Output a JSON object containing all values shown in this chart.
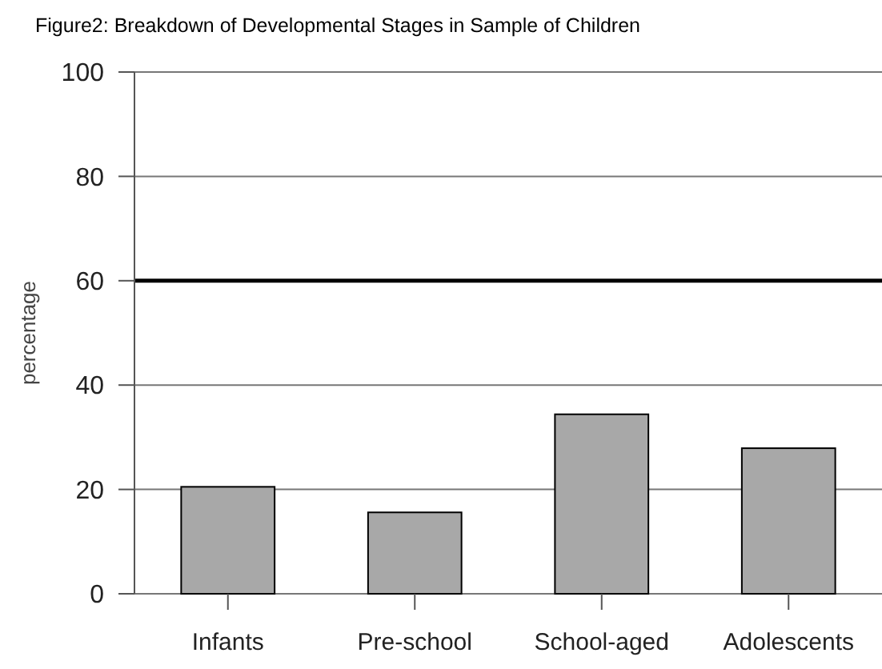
{
  "chart_data": {
    "type": "bar",
    "title": "Figure2: Breakdown of Developmental Stages in Sample of Children",
    "ylabel": "percentage",
    "categories": [
      "Infants",
      "Pre-school",
      "School-aged",
      "Adolescents"
    ],
    "values": [
      20.5,
      15.6,
      34.4,
      27.9
    ],
    "color": "#a8a8a8",
    "ylim": [
      0,
      100
    ],
    "yticks": [
      0,
      20,
      40,
      60,
      80,
      100
    ],
    "grid": "y",
    "ref_lines": [
      {
        "axis": "y",
        "value": 60,
        "color": "#000000"
      }
    ]
  }
}
